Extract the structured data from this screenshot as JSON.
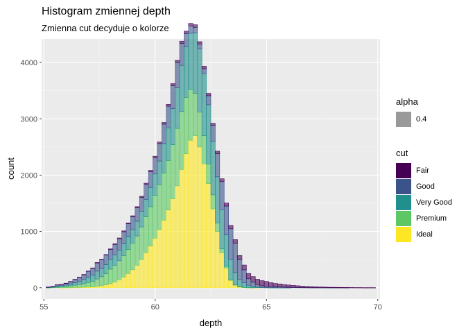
{
  "chart_data": {
    "type": "bar",
    "stacked": true,
    "title": "Histogram zmiennej depth",
    "subtitle": "Zmienna cut decyduje o kolorze",
    "xlabel": "depth",
    "ylabel": "count",
    "xlim": [
      54.9,
      70.1
    ],
    "ylim": [
      -200,
      4420
    ],
    "xticks": [
      "55",
      "60",
      "65",
      "70"
    ],
    "yticks": [
      "0",
      "1000",
      "2000",
      "3000",
      "4000"
    ],
    "grid": true,
    "legend_position": "right",
    "bins_x": [
      55.2,
      55.4,
      55.6,
      55.8,
      56.0,
      56.2,
      56.4,
      56.6,
      56.8,
      57.0,
      57.2,
      57.4,
      57.6,
      57.8,
      58.0,
      58.2,
      58.4,
      58.6,
      58.8,
      59.0,
      59.2,
      59.4,
      59.6,
      59.8,
      60.0,
      60.2,
      60.4,
      60.6,
      60.8,
      61.0,
      61.2,
      61.4,
      61.6,
      61.8,
      62.0,
      62.2,
      62.4,
      62.6,
      62.8,
      63.0,
      63.2,
      63.4,
      63.6,
      63.8,
      64.0,
      64.2,
      64.4,
      64.6,
      64.8,
      65.0,
      65.2,
      65.4,
      65.6,
      65.8,
      66.0,
      66.2,
      66.4,
      66.6,
      66.8,
      67.0,
      67.2,
      67.4,
      67.6,
      67.8,
      68.0,
      68.2,
      68.4,
      68.6,
      68.8,
      69.0,
      69.2,
      69.4,
      69.6,
      69.8
    ],
    "series": [
      {
        "name": "Fair",
        "color": "#440154",
        "values": [
          2,
          2,
          3,
          3,
          4,
          4,
          5,
          5,
          6,
          6,
          7,
          8,
          8,
          9,
          10,
          12,
          14,
          15,
          17,
          18,
          20,
          20,
          22,
          24,
          26,
          28,
          30,
          32,
          35,
          38,
          40,
          42,
          45,
          45,
          45,
          44,
          42,
          40,
          45,
          50,
          55,
          60,
          65,
          75,
          85,
          95,
          100,
          95,
          90,
          85,
          70,
          60,
          55,
          45,
          40,
          35,
          30,
          25,
          20,
          18,
          15,
          12,
          10,
          8,
          7,
          6,
          5,
          4,
          4,
          3,
          3,
          2,
          2,
          2
        ]
      },
      {
        "name": "Good",
        "color": "#3B528B",
        "values": [
          5,
          10,
          25,
          20,
          30,
          45,
          55,
          65,
          85,
          110,
          120,
          145,
          155,
          170,
          180,
          190,
          200,
          215,
          225,
          230,
          240,
          245,
          265,
          280,
          290,
          310,
          345,
          385,
          410,
          450,
          390,
          235,
          130,
          95,
          85,
          90,
          160,
          280,
          410,
          495,
          510,
          545,
          520,
          350,
          230,
          115,
          75,
          45,
          30,
          22,
          18,
          14,
          12,
          10,
          8,
          6,
          5,
          4,
          3,
          2,
          2,
          2,
          2,
          1,
          1,
          1,
          1,
          1,
          0,
          0,
          0,
          0,
          0,
          0
        ]
      },
      {
        "name": "Very Good",
        "color": "#21908C",
        "values": [
          4,
          8,
          15,
          20,
          25,
          30,
          45,
          60,
          75,
          90,
          110,
          140,
          145,
          160,
          170,
          180,
          190,
          210,
          230,
          240,
          260,
          280,
          310,
          340,
          380,
          420,
          520,
          580,
          640,
          720,
          820,
          900,
          1000,
          1080,
          1120,
          1100,
          1050,
          950,
          820,
          700,
          560,
          360,
          220,
          130,
          80,
          40,
          20,
          10,
          6,
          4,
          2,
          2,
          1,
          1,
          1,
          0,
          0,
          0,
          0,
          0,
          0,
          0,
          0,
          0,
          0,
          0,
          0,
          0,
          0,
          0,
          0,
          0,
          0,
          0
        ]
      },
      {
        "name": "Premium",
        "color": "#5DC863",
        "values": [
          2,
          5,
          10,
          15,
          20,
          30,
          40,
          50,
          60,
          80,
          100,
          130,
          160,
          200,
          260,
          300,
          340,
          380,
          430,
          470,
          520,
          580,
          640,
          700,
          760,
          800,
          840,
          880,
          960,
          1020,
          1030,
          1000,
          900,
          750,
          620,
          500,
          350,
          250,
          150,
          70,
          30,
          12,
          5,
          3,
          2,
          1,
          1,
          0,
          0,
          0,
          0,
          0,
          0,
          0,
          0,
          0,
          0,
          0,
          0,
          0,
          0,
          0,
          0,
          0,
          0,
          0,
          0,
          0,
          0,
          0,
          0,
          0,
          0,
          0
        ]
      },
      {
        "name": "Ideal",
        "color": "#FDE725",
        "values": [
          0,
          0,
          0,
          1,
          2,
          3,
          5,
          7,
          10,
          12,
          15,
          25,
          35,
          50,
          70,
          100,
          140,
          190,
          250,
          320,
          400,
          500,
          620,
          740,
          880,
          1030,
          1200,
          1380,
          1580,
          1810,
          2100,
          2380,
          2620,
          2700,
          2500,
          2200,
          1850,
          1400,
          1000,
          620,
          350,
          130,
          45,
          15,
          6,
          3,
          2,
          1,
          0,
          0,
          0,
          0,
          0,
          0,
          0,
          0,
          0,
          0,
          0,
          0,
          0,
          0,
          0,
          0,
          0,
          0,
          0,
          0,
          0,
          0,
          0,
          0,
          0,
          0
        ]
      }
    ]
  },
  "legend": {
    "alpha_title": "alpha",
    "alpha_label": "0.4",
    "alpha_color": "#999999",
    "cut_title": "cut"
  }
}
